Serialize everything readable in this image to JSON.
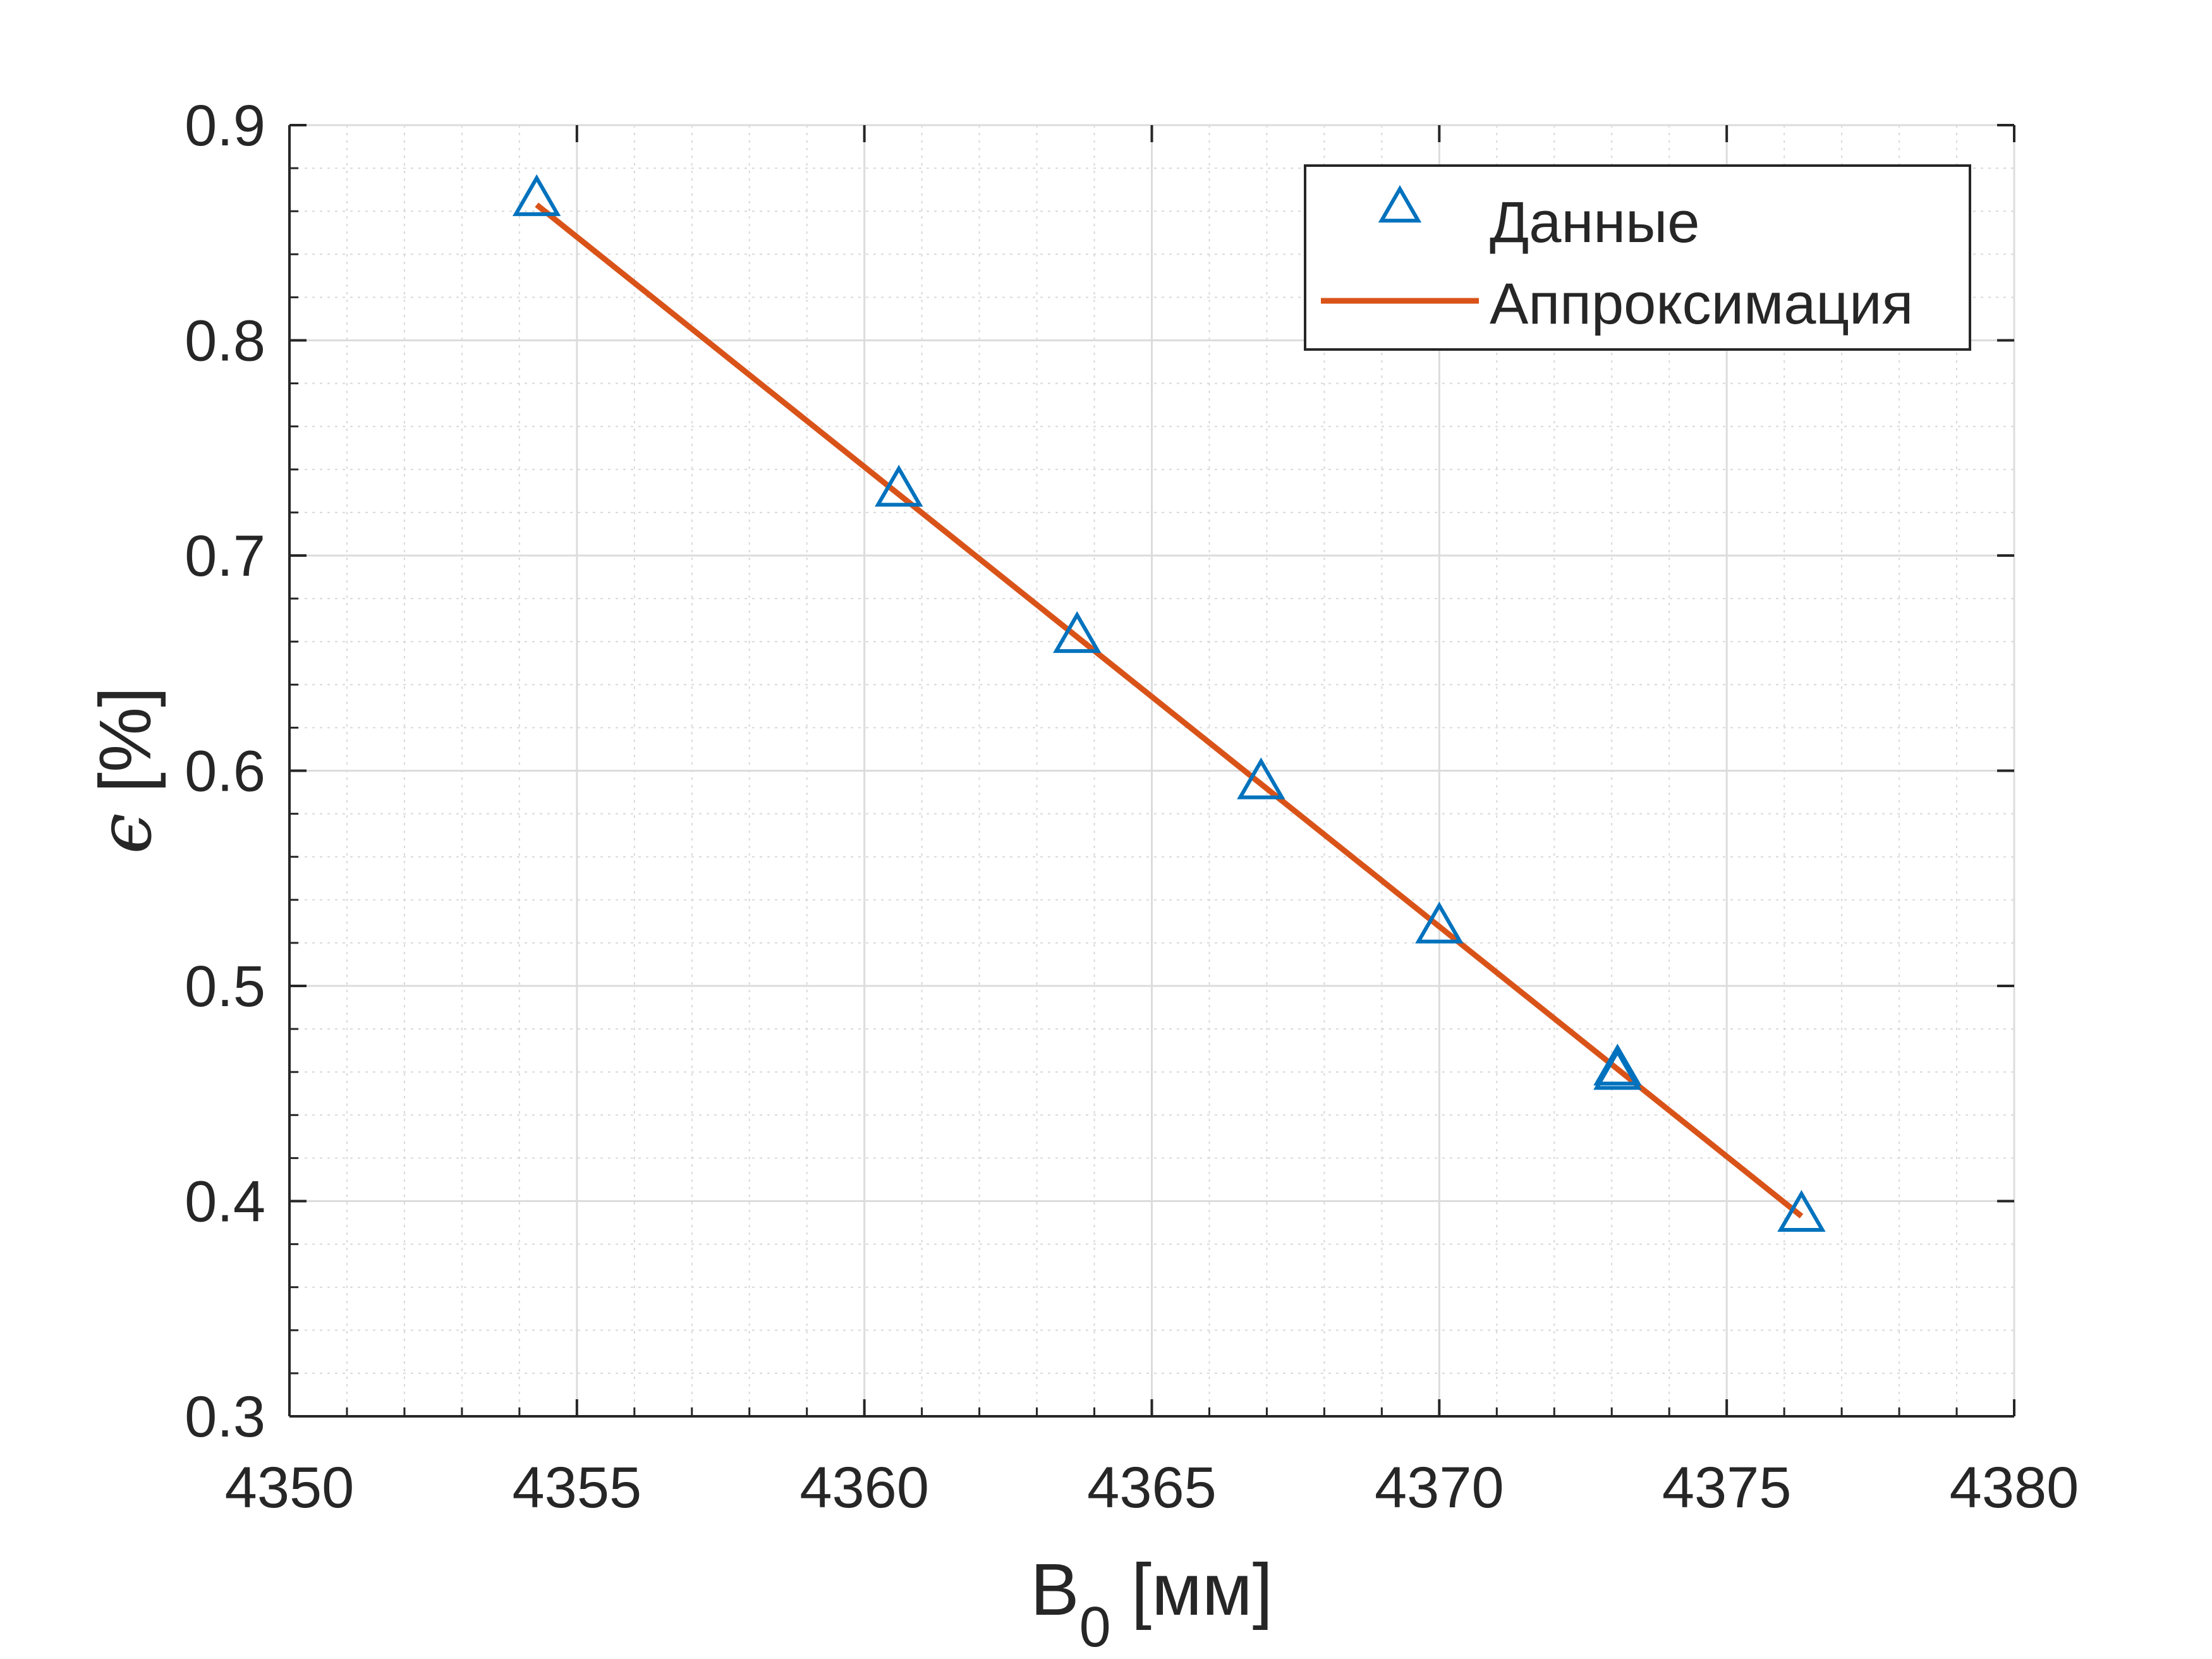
{
  "chart_data": {
    "type": "scatter",
    "xlabel": {
      "base": "B",
      "sub": "0",
      "unit": " [мм]"
    },
    "ylabel": {
      "symbol": "ϵ",
      "unit": " [%]"
    },
    "xlim": [
      4350,
      4380
    ],
    "ylim": [
      0.3,
      0.9
    ],
    "xticks": [
      4350,
      4355,
      4360,
      4365,
      4370,
      4375,
      4380
    ],
    "yticks": [
      0.3,
      0.4,
      0.5,
      0.6,
      0.7,
      0.8,
      0.9
    ],
    "xtick_labels": [
      "4350",
      "4355",
      "4360",
      "4365",
      "4370",
      "4375",
      "4380"
    ],
    "ytick_labels": [
      "0.3",
      "0.4",
      "0.5",
      "0.6",
      "0.7",
      "0.8",
      "0.9"
    ],
    "grid": true,
    "minor_grid": true,
    "legend_position": "top-right",
    "series": [
      {
        "name": "Данные",
        "type": "scatter",
        "marker": "triangle",
        "color": "#0072BD",
        "x": [
          4354.3,
          4360.6,
          4363.7,
          4366.9,
          4370.0,
          4373.1,
          4373.1,
          4376.3
        ],
        "y": [
          0.865,
          0.73,
          0.662,
          0.594,
          0.527,
          0.461,
          0.459,
          0.393
        ]
      },
      {
        "name": "Аппроксимация",
        "type": "line",
        "color": "#D95319",
        "x": [
          4354.3,
          4376.3
        ],
        "y": [
          0.863,
          0.393
        ]
      }
    ]
  }
}
